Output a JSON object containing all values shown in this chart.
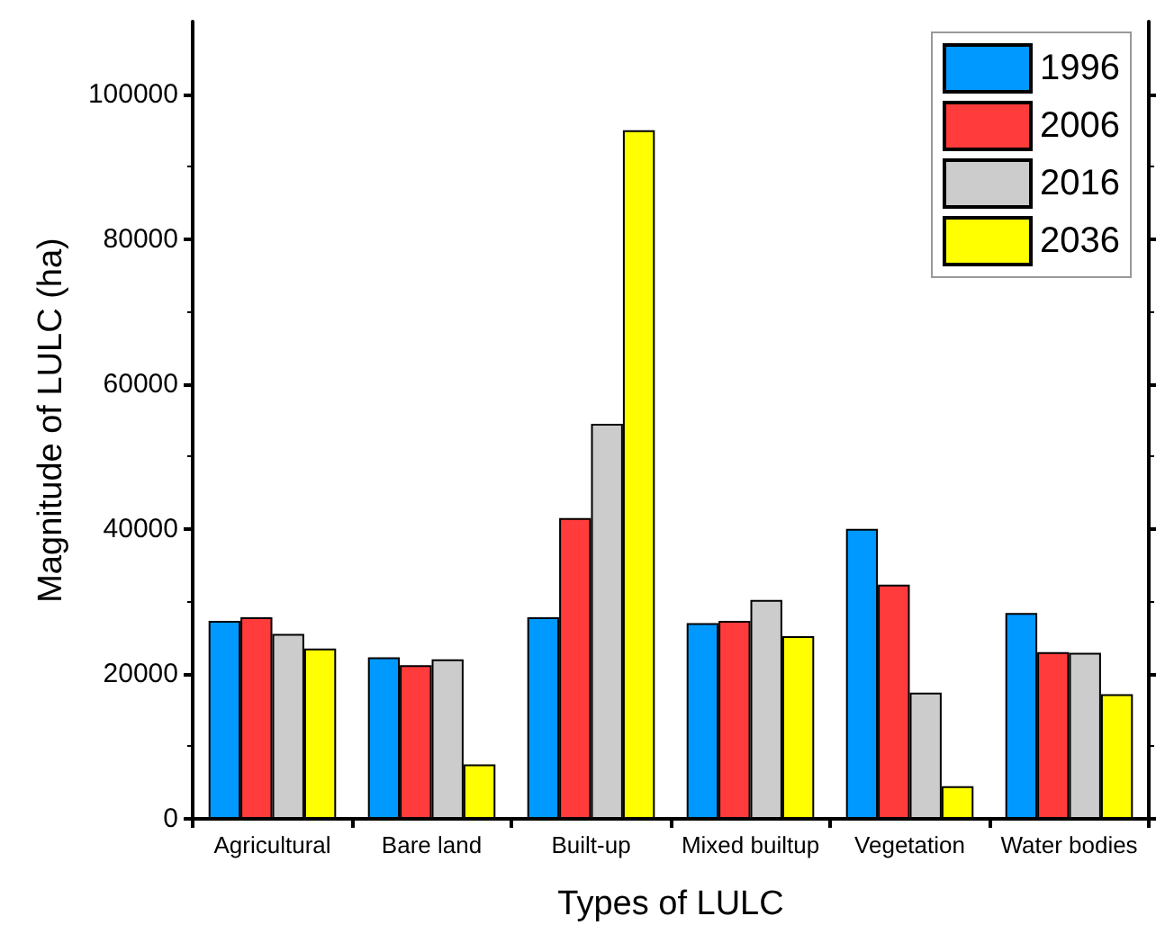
{
  "chart_data": {
    "type": "bar",
    "xlabel": "Types of LULC",
    "ylabel": "Magnitude of LULC (ha)",
    "categories": [
      "Agricultural",
      "Bare land",
      "Built-up",
      "Mixed builtup",
      "Vegetation",
      "Water bodies"
    ],
    "series": [
      {
        "name": "1996",
        "color": "#0099ff",
        "values": [
          27300,
          22300,
          27800,
          27000,
          40000,
          28400
        ]
      },
      {
        "name": "2006",
        "color": "#ff3b3b",
        "values": [
          27800,
          21200,
          41500,
          27300,
          32300,
          23000
        ]
      },
      {
        "name": "2016",
        "color": "#cccccc",
        "values": [
          25500,
          22000,
          54500,
          30200,
          17400,
          22900
        ]
      },
      {
        "name": "2036",
        "color": "#ffff00",
        "values": [
          23500,
          7500,
          95000,
          25200,
          4500,
          17200
        ]
      }
    ],
    "ylim": [
      0,
      110000
    ],
    "yticks": [
      0,
      20000,
      40000,
      60000,
      80000,
      100000
    ],
    "grid": false,
    "legend": "top right"
  }
}
